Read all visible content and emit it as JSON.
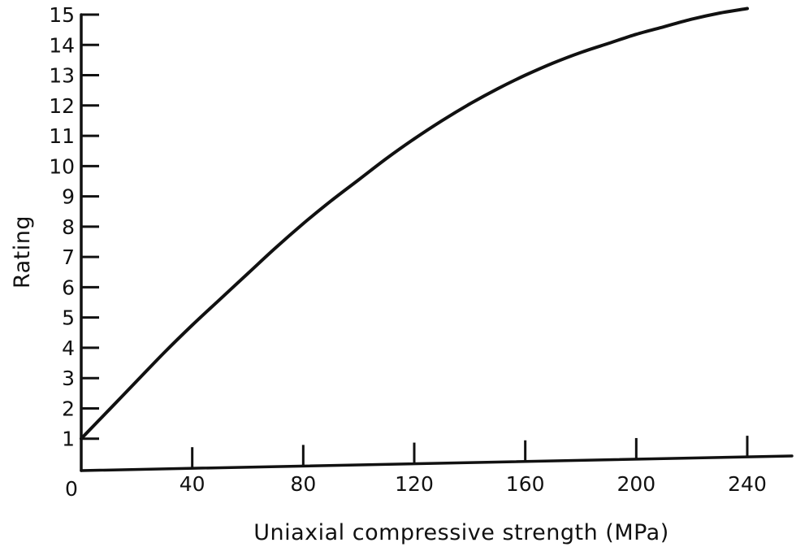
{
  "chart_data": {
    "type": "line",
    "title": "",
    "xlabel": "Uniaxial compressive strength (MPa)",
    "ylabel": "Rating",
    "xlim": [
      0,
      240
    ],
    "ylim": [
      0,
      15
    ],
    "x_ticks": [
      40,
      80,
      120,
      160,
      200,
      240
    ],
    "x_tick_labels": [
      "40",
      "80",
      "120",
      "160",
      "200",
      "240"
    ],
    "y_ticks": [
      1,
      2,
      3,
      4,
      5,
      6,
      7,
      8,
      9,
      10,
      11,
      12,
      13,
      14,
      15
    ],
    "y_tick_labels": [
      "1",
      "2",
      "3",
      "4",
      "5",
      "6",
      "7",
      "8",
      "9",
      "10",
      "11",
      "12",
      "13",
      "14",
      "15"
    ],
    "origin_label": "0",
    "grid": false,
    "legend": "none",
    "line_color": "#111111",
    "series": [
      {
        "x": [
          0,
          10,
          20,
          30,
          40,
          50,
          60,
          70,
          80,
          90,
          100,
          110,
          120,
          130,
          140,
          150,
          160,
          170,
          180,
          190,
          200,
          210,
          220,
          230,
          240
        ],
        "y": [
          1.0,
          1.95,
          2.9,
          3.85,
          4.75,
          5.6,
          6.45,
          7.3,
          8.1,
          8.85,
          9.55,
          10.25,
          10.9,
          11.5,
          12.05,
          12.55,
          13.0,
          13.4,
          13.75,
          14.05,
          14.35,
          14.6,
          14.85,
          15.05,
          15.2
        ]
      }
    ]
  }
}
